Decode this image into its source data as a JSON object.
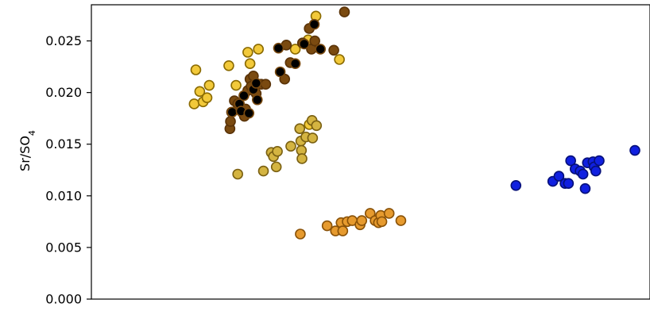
{
  "chart_data": {
    "type": "scatter",
    "title": "",
    "xlabel": "",
    "ylabel": "Sr/SO",
    "ylabel_subscript": "4",
    "ylim": [
      0.0,
      0.0285
    ],
    "xlim": [
      0,
      100
    ],
    "yticks": [
      0.0,
      0.005,
      0.01,
      0.015,
      0.02,
      0.025
    ],
    "ytick_labels": [
      "0.000",
      "0.005",
      "0.010",
      "0.015",
      "0.020",
      "0.025"
    ],
    "xticks_visible": false,
    "grid": false,
    "legend": "none",
    "series": [
      {
        "color": "#F2C93A",
        "edge": "#8A6A00",
        "points": [
          [
            18.4,
            0.0189
          ],
          [
            18.7,
            0.0222
          ],
          [
            19.4,
            0.0201
          ],
          [
            20.0,
            0.0191
          ],
          [
            20.7,
            0.0195
          ],
          [
            21.1,
            0.0207
          ],
          [
            24.6,
            0.0226
          ],
          [
            25.9,
            0.0207
          ],
          [
            28.0,
            0.0239
          ],
          [
            28.4,
            0.0228
          ],
          [
            29.9,
            0.0242
          ],
          [
            36.5,
            0.0242
          ],
          [
            38.8,
            0.0251
          ],
          [
            40.2,
            0.0274
          ],
          [
            44.4,
            0.0232
          ],
          [
            39.0,
            0.0169
          ]
        ]
      },
      {
        "color": "#D4B441",
        "edge": "#7A6012",
        "points": [
          [
            26.2,
            0.0121
          ],
          [
            30.8,
            0.0124
          ],
          [
            32.2,
            0.0142
          ],
          [
            32.6,
            0.0138
          ],
          [
            33.1,
            0.0128
          ],
          [
            33.3,
            0.0143
          ],
          [
            35.7,
            0.0148
          ],
          [
            37.3,
            0.0165
          ],
          [
            37.5,
            0.0153
          ],
          [
            37.6,
            0.0144
          ],
          [
            37.7,
            0.0136
          ],
          [
            38.4,
            0.0157
          ],
          [
            39.5,
            0.0173
          ],
          [
            39.6,
            0.0156
          ],
          [
            40.3,
            0.0168
          ]
        ]
      },
      {
        "color": "#7A4A10",
        "edge": "#5A3308",
        "points": [
          [
            24.8,
            0.0165
          ],
          [
            24.9,
            0.0172
          ],
          [
            25.1,
            0.0181
          ],
          [
            25.6,
            0.0192
          ],
          [
            26.2,
            0.0189
          ],
          [
            27.0,
            0.0181
          ],
          [
            27.4,
            0.0177
          ],
          [
            27.6,
            0.0184
          ],
          [
            28.0,
            0.0202
          ],
          [
            28.4,
            0.0213
          ],
          [
            28.6,
            0.0206
          ],
          [
            29.0,
            0.0216
          ],
          [
            29.5,
            0.0199
          ],
          [
            30.4,
            0.0208
          ],
          [
            31.2,
            0.0208
          ],
          [
            34.6,
            0.0213
          ],
          [
            34.9,
            0.0246
          ],
          [
            35.6,
            0.0229
          ],
          [
            37.8,
            0.0248
          ],
          [
            39.0,
            0.0262
          ],
          [
            39.4,
            0.0242
          ],
          [
            40.0,
            0.025
          ],
          [
            43.4,
            0.0241
          ],
          [
            45.3,
            0.0278
          ]
        ]
      },
      {
        "color": "#000000",
        "edge": "#7A4A10",
        "points": [
          [
            25.2,
            0.0181
          ],
          [
            26.5,
            0.0189
          ],
          [
            26.8,
            0.0182
          ],
          [
            27.3,
            0.0197
          ],
          [
            28.2,
            0.018
          ],
          [
            29.0,
            0.0203
          ],
          [
            29.5,
            0.0209
          ],
          [
            29.7,
            0.0193
          ],
          [
            33.5,
            0.0243
          ],
          [
            33.8,
            0.022
          ],
          [
            36.5,
            0.0228
          ],
          [
            38.1,
            0.0247
          ],
          [
            39.9,
            0.0266
          ],
          [
            41.0,
            0.0242
          ]
        ]
      },
      {
        "color": "#E69A2E",
        "edge": "#8A5208",
        "points": [
          [
            37.4,
            0.0063
          ],
          [
            42.2,
            0.0071
          ],
          [
            43.7,
            0.0066
          ],
          [
            44.7,
            0.0074
          ],
          [
            45.0,
            0.0066
          ],
          [
            45.8,
            0.0075
          ],
          [
            46.7,
            0.0076
          ],
          [
            48.1,
            0.0072
          ],
          [
            48.4,
            0.0076
          ],
          [
            49.9,
            0.0083
          ],
          [
            50.8,
            0.0076
          ],
          [
            51.4,
            0.0074
          ],
          [
            51.8,
            0.0081
          ],
          [
            52.0,
            0.0075
          ],
          [
            53.3,
            0.0083
          ],
          [
            55.4,
            0.0076
          ]
        ]
      },
      {
        "color": "#1020E0",
        "edge": "#06107A",
        "points": [
          [
            76.0,
            0.011
          ],
          [
            82.6,
            0.0114
          ],
          [
            83.7,
            0.0119
          ],
          [
            84.8,
            0.0112
          ],
          [
            85.4,
            0.0112
          ],
          [
            85.8,
            0.0134
          ],
          [
            86.6,
            0.0126
          ],
          [
            87.5,
            0.0124
          ],
          [
            88.0,
            0.0121
          ],
          [
            88.4,
            0.0107
          ],
          [
            88.8,
            0.0132
          ],
          [
            89.8,
            0.0133
          ],
          [
            90.0,
            0.0128
          ],
          [
            90.3,
            0.0124
          ],
          [
            90.9,
            0.0134
          ],
          [
            97.3,
            0.0144
          ]
        ]
      }
    ]
  }
}
